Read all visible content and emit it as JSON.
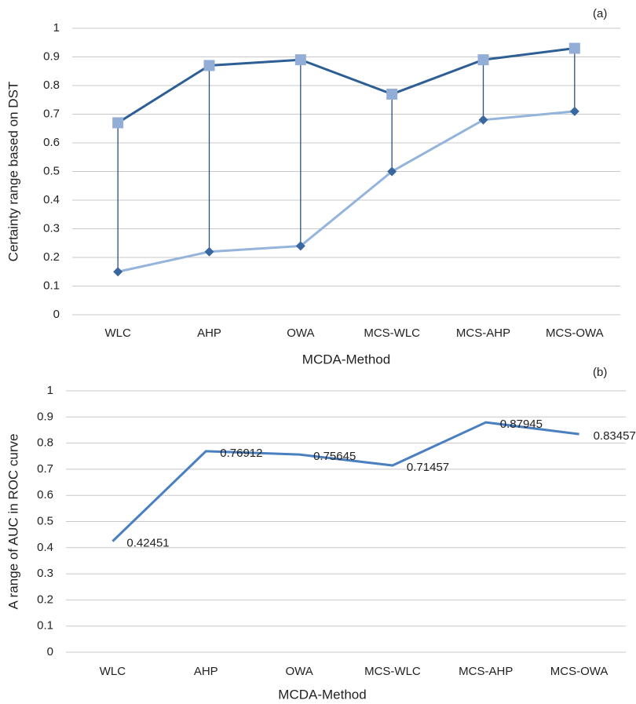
{
  "chart_data": [
    {
      "type": "line",
      "label": "(a)",
      "y_label": "Certainty range based on DST",
      "x_label": "MCDA-Method",
      "categories": [
        "WLC",
        "AHP",
        "OWA",
        "MCS-WLC",
        "MCS-AHP",
        "MCS-OWA"
      ],
      "series": [
        {
          "color": "#2e5f94",
          "marker": "square",
          "marker_color": "#93aed6",
          "values": [
            0.67,
            0.87,
            0.89,
            0.77,
            0.89,
            0.93
          ]
        },
        {
          "color": "#95b4dc",
          "marker": "diamond",
          "marker_color": "#3a67a0",
          "values": [
            0.15,
            0.22,
            0.24,
            0.5,
            0.68,
            0.71
          ]
        }
      ],
      "high_low_lines": true,
      "high_low_color": "#2c4f7c",
      "ylim": [
        0,
        1
      ],
      "yticks": [
        0,
        0.1,
        0.2,
        0.3,
        0.4,
        0.5,
        0.6,
        0.7,
        0.8,
        0.9,
        1
      ],
      "grid": true
    },
    {
      "type": "line",
      "label": "(b)",
      "y_label": "A range of AUC  in ROC curve",
      "x_label": "MCDA-Method",
      "categories": [
        "WLC",
        "AHP",
        "OWA",
        "MCS-WLC",
        "MCS-AHP",
        "MCS-OWA"
      ],
      "series": [
        {
          "color": "#4a7fc0",
          "values": [
            0.42451,
            0.76912,
            0.75645,
            0.71457,
            0.87945,
            0.83457
          ]
        }
      ],
      "data_labels": true,
      "ylim": [
        0,
        1
      ],
      "yticks": [
        0,
        0.1,
        0.2,
        0.3,
        0.4,
        0.5,
        0.6,
        0.7,
        0.8,
        0.9,
        1
      ],
      "grid": true
    }
  ]
}
